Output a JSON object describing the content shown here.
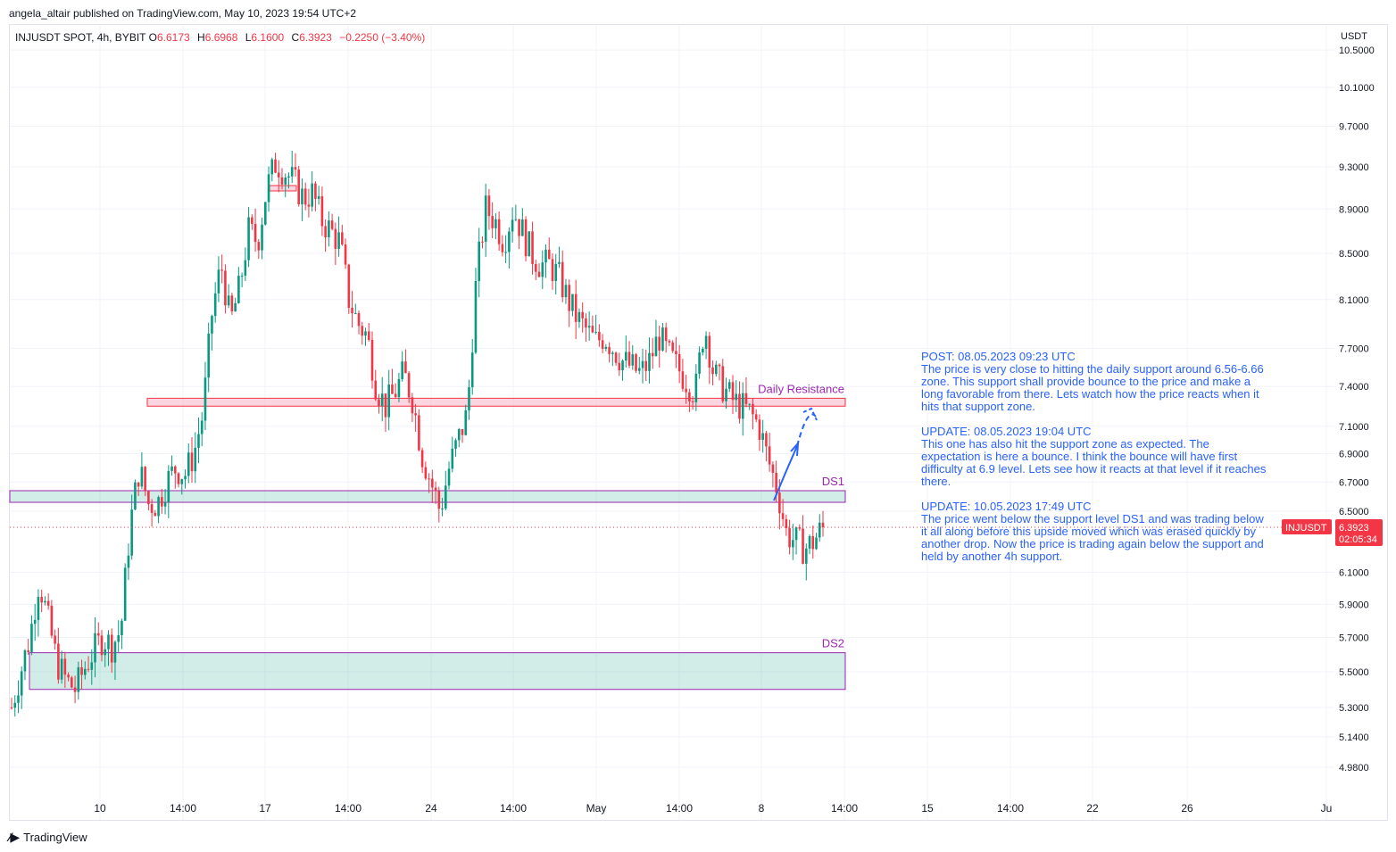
{
  "header": {
    "published": "angela_altair published on TradingView.com, May 10, 2023 19:54 UTC+2"
  },
  "legend": {
    "symbol": "INJUSDT SPOT, 4h, BYBIT",
    "o_label": "O",
    "o": "6.6173",
    "h_label": "H",
    "h": "6.6968",
    "l_label": "L",
    "l": "6.1600",
    "c_label": "C",
    "c": "6.3923",
    "change": "−0.2250 (−3.40%)"
  },
  "price_tag": {
    "symbol": "INJUSDT",
    "price": "6.3923",
    "countdown": "02:05:34",
    "color": "#f23645"
  },
  "footer": {
    "brand": "TradingView"
  },
  "colors": {
    "up": "#089981",
    "down": "#f23645",
    "resistance": "#f7a1b8",
    "support": "#089981",
    "zone_border": "#9c27b0",
    "annotation": "#2962ff"
  },
  "chart_data": {
    "type": "candlestick",
    "title": "INJUSDT SPOT, 4h, BYBIT",
    "yaxis_unit": "USDT",
    "y_scale": "log",
    "ylim": [
      4.85,
      10.6
    ],
    "y_ticks": [
      "10.5000",
      "10.1000",
      "9.7000",
      "9.3000",
      "8.9000",
      "8.5000",
      "8.1000",
      "7.7000",
      "7.4000",
      "7.1000",
      "6.9000",
      "6.7000",
      "6.5000",
      "6.1000",
      "5.9000",
      "5.7000",
      "5.5000",
      "5.3000",
      "5.1400",
      "4.9800"
    ],
    "x_ticks": [
      "10",
      "14:00",
      "17",
      "14:00",
      "24",
      "14:00",
      "May",
      "14:00",
      "8",
      "14:00",
      "15",
      "14:00",
      "22",
      "26",
      "Ju"
    ],
    "last_price": 6.3923,
    "series_path": [
      [
        0,
        5.3
      ],
      [
        2,
        5.7
      ],
      [
        3,
        6.05
      ],
      [
        4,
        5.8
      ],
      [
        5,
        5.55
      ],
      [
        6,
        5.45
      ],
      [
        7,
        5.4
      ],
      [
        8,
        5.52
      ],
      [
        9,
        5.62
      ],
      [
        10,
        5.7
      ],
      [
        11,
        5.65
      ],
      [
        12,
        5.75
      ],
      [
        13,
        6.4
      ],
      [
        14,
        6.8
      ],
      [
        15,
        6.55
      ],
      [
        16,
        6.55
      ],
      [
        17,
        6.7
      ],
      [
        18,
        6.8
      ],
      [
        19,
        6.75
      ],
      [
        20,
        6.9
      ],
      [
        21,
        7.2
      ],
      [
        22,
        8.0
      ],
      [
        23,
        8.4
      ],
      [
        24,
        7.9
      ],
      [
        25,
        8.2
      ],
      [
        26,
        8.7
      ],
      [
        27,
        8.6
      ],
      [
        28,
        9.1
      ],
      [
        29,
        9.35
      ],
      [
        30,
        9.25
      ],
      [
        31,
        9.15
      ],
      [
        32,
        9.0
      ],
      [
        33,
        9.05
      ],
      [
        34,
        8.8
      ],
      [
        35,
        8.7
      ],
      [
        36,
        8.6
      ],
      [
        37,
        8.1
      ],
      [
        38,
        7.9
      ],
      [
        39,
        7.8
      ],
      [
        40,
        7.4
      ],
      [
        41,
        7.25
      ],
      [
        42,
        7.35
      ],
      [
        43,
        7.5
      ],
      [
        44,
        7.3
      ],
      [
        45,
        6.9
      ],
      [
        46,
        6.7
      ],
      [
        47,
        6.5
      ],
      [
        48,
        6.8
      ],
      [
        49,
        7.0
      ],
      [
        50,
        7.2
      ],
      [
        51,
        8.3
      ],
      [
        52,
        8.9
      ],
      [
        53,
        8.8
      ],
      [
        54,
        8.6
      ],
      [
        55,
        8.9
      ],
      [
        56,
        8.7
      ],
      [
        57,
        8.5
      ],
      [
        58,
        8.4
      ],
      [
        59,
        8.4
      ],
      [
        60,
        8.3
      ],
      [
        61,
        8.1
      ],
      [
        62,
        7.95
      ],
      [
        63,
        7.85
      ],
      [
        64,
        7.75
      ],
      [
        65,
        7.8
      ],
      [
        66,
        7.7
      ],
      [
        67,
        7.6
      ],
      [
        68,
        7.55
      ],
      [
        69,
        7.5
      ],
      [
        70,
        7.6
      ],
      [
        71,
        7.8
      ],
      [
        72,
        7.65
      ],
      [
        73,
        7.55
      ],
      [
        74,
        7.45
      ],
      [
        75,
        7.35
      ],
      [
        76,
        7.9
      ],
      [
        77,
        7.5
      ],
      [
        78,
        7.4
      ],
      [
        79,
        7.3
      ],
      [
        80,
        7.25
      ],
      [
        81,
        7.2
      ],
      [
        82,
        7.1
      ],
      [
        83,
        6.85
      ],
      [
        84,
        6.65
      ],
      [
        85,
        6.35
      ],
      [
        86,
        6.3
      ],
      [
        87,
        6.25
      ],
      [
        88,
        6.3
      ],
      [
        89,
        6.4
      ]
    ],
    "zones": [
      {
        "name": "Daily Resistance",
        "label": "Daily Resistance",
        "low": 7.25,
        "high": 7.31,
        "kind": "resistance"
      },
      {
        "name": "DS1",
        "label": "DS1",
        "low": 6.56,
        "high": 6.64,
        "kind": "support"
      },
      {
        "name": "DS2",
        "label": "DS2",
        "low": 5.4,
        "high": 5.61,
        "kind": "support"
      }
    ],
    "annotations": [
      {
        "title": "POST: 08.05.2023 09:23 UTC",
        "body": "The price is very close to hitting the daily support around 6.56-6.66 zone. This support shall provide bounce to the price and make a long favorable from there. Lets watch how the price reacts when it hits that support zone."
      },
      {
        "title": "UPDATE: 08.05.2023 19:04 UTC",
        "body": "This one has also hit the support zone as expected. The expectation is here a bounce. I think the bounce will have first difficulty at 6.9 level. Lets see how it reacts at that level if it reaches there."
      },
      {
        "title": "UPDATE: 10.05.2023 17:49 UTC",
        "body": "The price went below the support level DS1 and was trading below it all along before this upside moved which was erased quickly by another drop. Now the price is trading again below the support and held by another 4h support."
      }
    ]
  }
}
